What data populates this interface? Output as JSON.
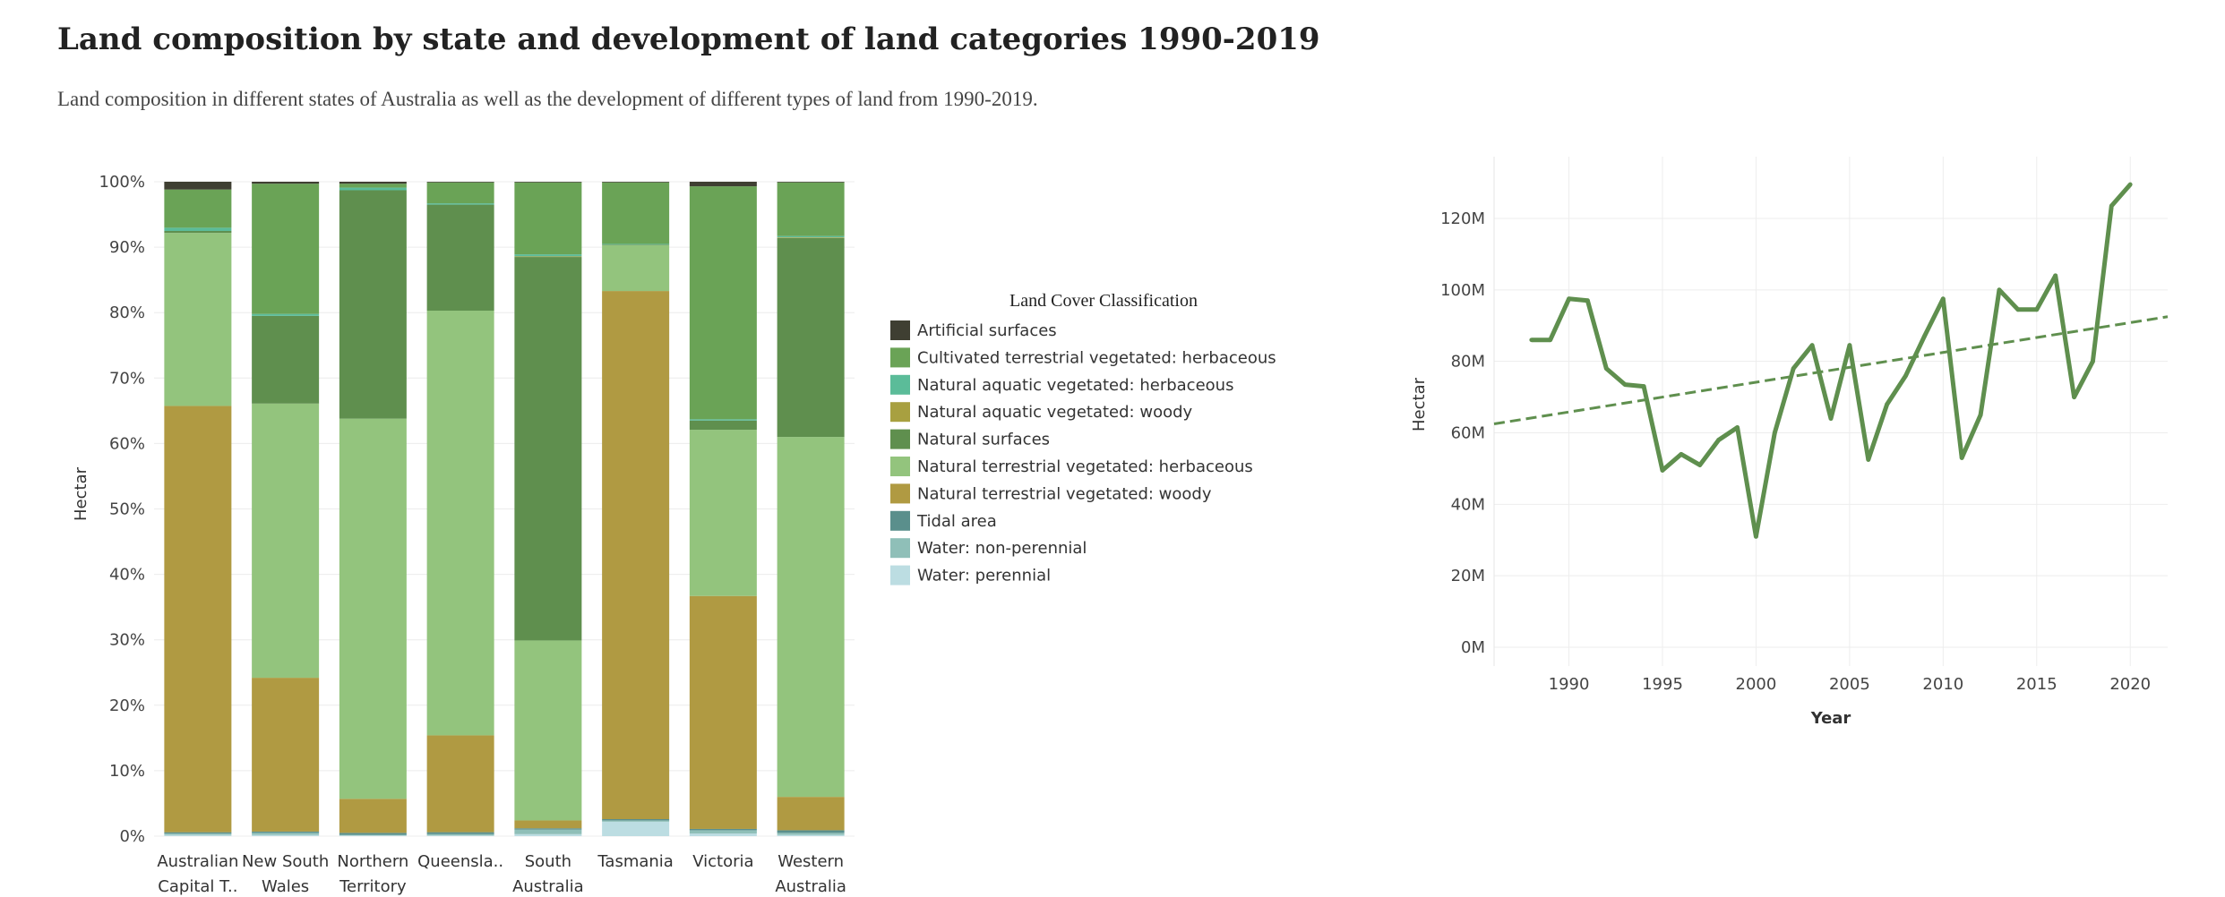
{
  "page": {
    "title": "Land composition by state and development of land categories 1990-2019",
    "subtitle": "Land composition in different states of Australia as well as the development of different types of land from 1990-2019."
  },
  "chart_data": [
    {
      "type": "bar",
      "stacked": true,
      "normalized": true,
      "title": "",
      "xlabel": "",
      "ylabel": "Hectar",
      "ylim": [
        0,
        100
      ],
      "y_ticks": [
        "0%",
        "10%",
        "20%",
        "30%",
        "40%",
        "50%",
        "60%",
        "70%",
        "80%",
        "90%",
        "100%"
      ],
      "categories": [
        "Australian Capital Territory",
        "New South Wales",
        "Northern Territory",
        "Queensland",
        "South Australia",
        "Tasmania",
        "Victoria",
        "Western Australia"
      ],
      "category_labels": [
        [
          "Australian",
          "Capital T.."
        ],
        [
          "New South",
          "Wales"
        ],
        [
          "Northern",
          "Territory"
        ],
        [
          "Queensla.."
        ],
        [
          "South",
          "Australia"
        ],
        [
          "Tasmania"
        ],
        [
          "Victoria"
        ],
        [
          "Western",
          "Australia"
        ]
      ],
      "legend": {
        "title": "Land Cover Classification",
        "position": "right"
      },
      "series": [
        {
          "name": "Water: perennial",
          "color": "#bcdde2",
          "values": [
            0.2,
            0.2,
            0.1,
            0.1,
            0.3,
            2.2,
            0.4,
            0.2
          ]
        },
        {
          "name": "Water: non-perennial",
          "color": "#8fbfb8",
          "values": [
            0.2,
            0.3,
            0.1,
            0.2,
            0.7,
            0.2,
            0.5,
            0.3
          ]
        },
        {
          "name": "Tidal area",
          "color": "#5a8f8c",
          "values": [
            0.2,
            0.2,
            0.3,
            0.3,
            0.2,
            0.2,
            0.2,
            0.4
          ]
        },
        {
          "name": "Natural terrestrial vegetated: woody",
          "color": "#b09a42",
          "values": [
            65.8,
            23.5,
            5.2,
            14.8,
            1.2,
            80.7,
            35.6,
            5.1
          ]
        },
        {
          "name": "Natural terrestrial vegetated: herbaceous",
          "color": "#93c47d",
          "values": [
            26.7,
            41.9,
            58.1,
            64.9,
            27.5,
            7.0,
            25.4,
            55.0
          ]
        },
        {
          "name": "Natural surfaces",
          "color": "#5f8f4e",
          "values": [
            0.3,
            13.4,
            34.9,
            16.2,
            58.6,
            0.1,
            1.4,
            30.4
          ]
        },
        {
          "name": "Natural aquatic vegetated: woody",
          "color": "#a8a040",
          "values": [
            0.0,
            0.0,
            0.0,
            0.0,
            0.1,
            0.0,
            0.0,
            0.1
          ]
        },
        {
          "name": "Natural aquatic vegetated: herbaceous",
          "color": "#5bbc99",
          "values": [
            0.5,
            0.3,
            0.4,
            0.2,
            0.3,
            0.1,
            0.2,
            0.2
          ]
        },
        {
          "name": "Cultivated terrestrial vegetated: herbaceous",
          "color": "#6aa356",
          "values": [
            5.9,
            19.9,
            0.6,
            3.2,
            11.0,
            9.4,
            35.6,
            8.2
          ]
        },
        {
          "name": "Artificial surfaces",
          "color": "#3f3f32",
          "values": [
            1.2,
            0.3,
            0.3,
            0.1,
            0.1,
            0.1,
            0.7,
            0.1
          ]
        }
      ]
    },
    {
      "type": "line",
      "title": "",
      "xlabel": "Year",
      "ylabel": "Hectar",
      "xlim": [
        1986,
        2022
      ],
      "ylim": [
        0,
        130
      ],
      "y_unit": "M",
      "x_ticks": [
        "1990",
        "1995",
        "2000",
        "2005",
        "2010",
        "2015",
        "2020"
      ],
      "y_ticks": [
        "0M",
        "20M",
        "40M",
        "60M",
        "80M",
        "100M",
        "120M"
      ],
      "grid": true,
      "color": "#5f8f4e",
      "x": [
        1988,
        1989,
        1990,
        1991,
        1992,
        1993,
        1994,
        1995,
        1996,
        1997,
        1998,
        1999,
        2000,
        2001,
        2002,
        2003,
        2004,
        2005,
        2006,
        2007,
        2008,
        2009,
        2010,
        2011,
        2012,
        2013,
        2014,
        2015,
        2016,
        2017,
        2018,
        2019,
        2020
      ],
      "y": [
        86,
        86,
        97.5,
        97,
        78,
        73.5,
        73,
        49.5,
        54,
        51,
        58,
        61.5,
        31,
        60,
        78,
        84.5,
        64,
        84.5,
        52.5,
        68,
        76,
        87,
        97.5,
        53,
        65,
        100,
        94.5,
        94.5,
        104,
        70,
        80,
        123.5,
        129.5
      ],
      "trend": {
        "style": "dashed",
        "x": [
          1986,
          2022
        ],
        "y": [
          62.5,
          92.5
        ]
      }
    }
  ]
}
